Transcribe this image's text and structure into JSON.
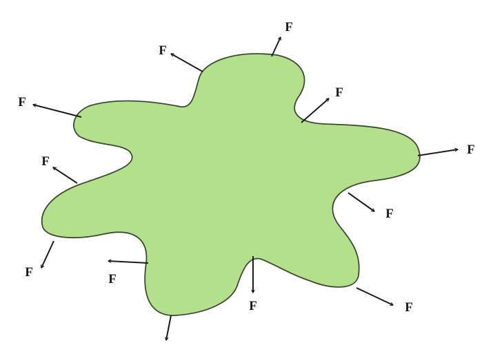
{
  "diagram": {
    "body_fill": "#b3e08a",
    "body_stroke": "#3b4a2e",
    "arrow_color": "#1a1a1a",
    "force_label": "F",
    "force_count": 12
  }
}
